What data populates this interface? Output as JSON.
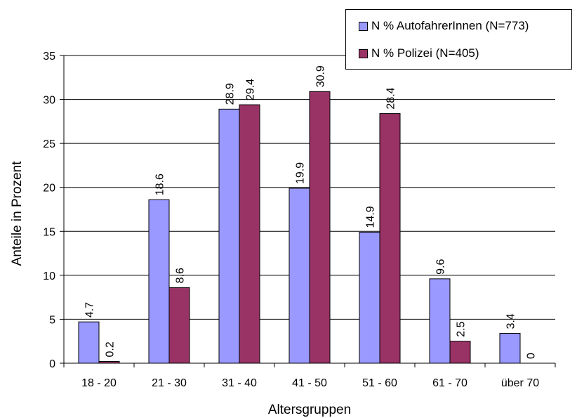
{
  "chart_data": {
    "type": "bar",
    "xlabel": "Altersgruppen",
    "ylabel": "Anteile in Prozent",
    "ylim": [
      0,
      35
    ],
    "yticks": [
      0,
      5,
      10,
      15,
      20,
      25,
      30,
      35
    ],
    "grid": true,
    "legend_position": "top-right",
    "categories": [
      "18 - 20",
      "21 - 30",
      "31 - 40",
      "41 - 50",
      "51 - 60",
      "61 - 70",
      "über 70"
    ],
    "series": [
      {
        "name": "N % AutofahrerInnen (N=773)",
        "color": "#9999ff",
        "values": [
          4.7,
          18.6,
          28.9,
          19.9,
          14.9,
          9.6,
          3.4
        ],
        "labels": [
          "4.7",
          "18.6",
          "28.9",
          "19.9",
          "14.9",
          "9.6",
          "3.4"
        ]
      },
      {
        "name": "N % Polizei (N=405)",
        "color": "#993366",
        "values": [
          0.2,
          8.6,
          29.4,
          30.9,
          28.4,
          2.5,
          0
        ],
        "labels": [
          "0.2",
          "8.6",
          "29.4",
          "30.9",
          "28.4",
          "2.5",
          "0"
        ]
      }
    ]
  }
}
